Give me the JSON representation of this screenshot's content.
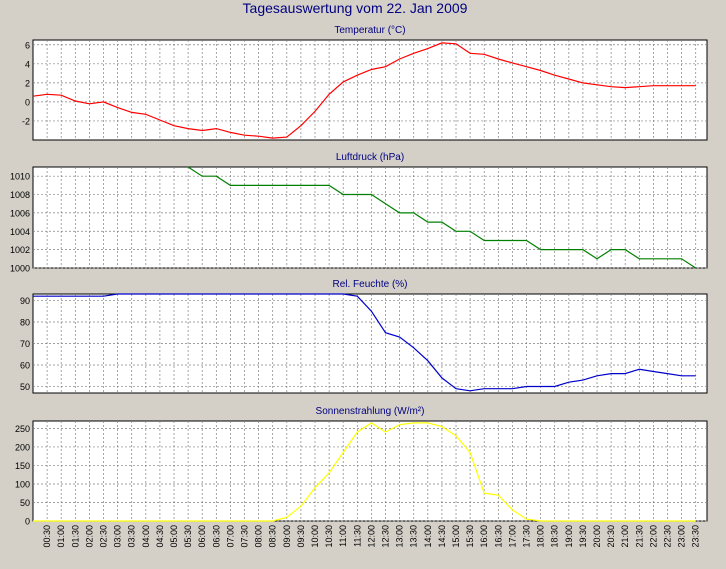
{
  "title": "Tagesauswertung vom 22. Jan 2009",
  "colors": {
    "background": "#d4d0c8",
    "plot_bg": "#ffffff",
    "grid": "#808080",
    "title": "#000080",
    "axis_text": "#000000"
  },
  "time_labels": [
    "00:30",
    "01:00",
    "01:30",
    "02:00",
    "02:30",
    "03:00",
    "03:30",
    "04:00",
    "04:30",
    "05:00",
    "05:30",
    "06:00",
    "06:30",
    "07:00",
    "07:30",
    "08:00",
    "08:30",
    "09:00",
    "09:30",
    "10:00",
    "10:30",
    "11:00",
    "11:30",
    "12:00",
    "12:30",
    "13:00",
    "13:30",
    "14:00",
    "14:30",
    "15:00",
    "15:30",
    "16:00",
    "16:30",
    "17:00",
    "17:30",
    "18:00",
    "18:30",
    "19:00",
    "19:30",
    "20:00",
    "20:30",
    "21:00",
    "21:30",
    "22:00",
    "22:30",
    "23:00",
    "23:30"
  ],
  "chart_data": [
    {
      "type": "line",
      "title": "Temperatur (°C)",
      "color": "#ff0000",
      "grid": true,
      "ylim": [
        -4,
        6.5
      ],
      "yticks": [
        -2,
        0,
        2,
        4,
        6
      ],
      "x_range": [
        0,
        23.9
      ],
      "x": [
        0,
        0.5,
        1,
        1.5,
        2,
        2.5,
        3,
        3.5,
        4,
        4.5,
        5,
        5.5,
        6,
        6.5,
        7,
        7.5,
        8,
        8.5,
        9,
        9.5,
        10,
        10.5,
        11,
        11.5,
        12,
        12.5,
        13,
        13.5,
        14,
        14.5,
        15,
        15.5,
        16,
        16.5,
        17,
        17.5,
        18,
        18.5,
        19,
        19.5,
        20,
        20.5,
        21,
        21.5,
        22,
        22.5,
        23,
        23.5
      ],
      "series": [
        {
          "values": [
            0.6,
            0.8,
            0.7,
            0.1,
            -0.2,
            0.0,
            -0.6,
            -1.1,
            -1.3,
            -1.9,
            -2.5,
            -2.8,
            -3.0,
            -2.8,
            -3.2,
            -3.5,
            -3.6,
            -3.8,
            -3.7,
            -2.5,
            -1.0,
            0.8,
            2.1,
            2.8,
            3.4,
            3.7,
            4.5,
            5.1,
            5.6,
            6.2,
            6.1,
            5.1,
            5.0,
            4.5,
            4.1,
            3.7,
            3.3,
            2.8,
            2.4,
            2.0,
            1.8,
            1.6,
            1.5,
            1.6,
            1.7,
            1.7,
            1.7,
            1.7
          ]
        }
      ]
    },
    {
      "type": "line",
      "title": "Luftdruck (hPa)",
      "color": "#008000",
      "grid": true,
      "ylim": [
        1000,
        1011
      ],
      "yticks": [
        1000,
        1002,
        1004,
        1006,
        1008,
        1010
      ],
      "x_range": [
        0,
        23.9
      ],
      "x": [
        5.5,
        6,
        6.5,
        7,
        7.5,
        8,
        8.5,
        9,
        9.5,
        10,
        10.5,
        11,
        11.5,
        12,
        12.5,
        13,
        13.5,
        14,
        14.5,
        15,
        15.5,
        16,
        16.5,
        17,
        17.5,
        18,
        18.5,
        19,
        19.5,
        20,
        20.5,
        21,
        21.5,
        22,
        22.5,
        23,
        23.5
      ],
      "series": [
        {
          "values": [
            1011,
            1010,
            1010,
            1009,
            1009,
            1009,
            1009,
            1009,
            1009,
            1009,
            1009,
            1008,
            1008,
            1008,
            1007,
            1006,
            1006,
            1005,
            1005,
            1004,
            1004,
            1003,
            1003,
            1003,
            1003,
            1002,
            1002,
            1002,
            1002,
            1001,
            1002,
            1002,
            1001,
            1001,
            1001,
            1001,
            1000
          ]
        }
      ]
    },
    {
      "type": "line",
      "title": "Rel. Feuchte (%)",
      "color": "#0000cc",
      "grid": true,
      "ylim": [
        47,
        93
      ],
      "yticks": [
        50,
        60,
        70,
        80,
        90
      ],
      "x_range": [
        0,
        23.9
      ],
      "x": [
        0,
        1,
        2,
        2.5,
        3,
        3.5,
        4,
        5,
        6,
        7,
        8,
        9,
        10,
        11,
        11.5,
        12,
        12.5,
        13,
        13.5,
        14,
        14.5,
        15,
        15.5,
        16,
        16.5,
        17,
        17.5,
        18,
        18.5,
        19,
        19.5,
        20,
        20.5,
        21,
        21.5,
        22,
        22.5,
        23,
        23.5
      ],
      "series": [
        {
          "values": [
            92,
            92,
            92,
            92,
            93,
            93,
            93,
            93,
            93,
            93,
            93,
            93,
            93,
            93,
            92,
            85,
            75,
            73,
            68,
            62,
            54,
            49,
            48,
            49,
            49,
            49,
            50,
            50,
            50,
            52,
            53,
            55,
            56,
            56,
            58,
            57,
            56,
            55,
            55
          ]
        }
      ]
    },
    {
      "type": "line",
      "title": "Sonnenstrahlung (W/m²)",
      "color": "#ffff00",
      "grid": true,
      "ylim": [
        0,
        270
      ],
      "yticks": [
        0,
        50,
        100,
        150,
        200,
        250
      ],
      "x_range": [
        0,
        23.9
      ],
      "x": [
        0,
        8,
        8.5,
        9,
        9.5,
        10,
        10.5,
        11,
        11.5,
        12,
        12.5,
        13,
        13.5,
        14,
        14.5,
        15,
        15.5,
        16,
        16.5,
        17,
        17.5,
        18,
        23.5
      ],
      "series": [
        {
          "values": [
            0,
            0,
            0,
            10,
            40,
            90,
            130,
            185,
            240,
            265,
            240,
            260,
            265,
            265,
            255,
            230,
            185,
            75,
            70,
            30,
            5,
            0,
            0
          ]
        }
      ]
    }
  ]
}
